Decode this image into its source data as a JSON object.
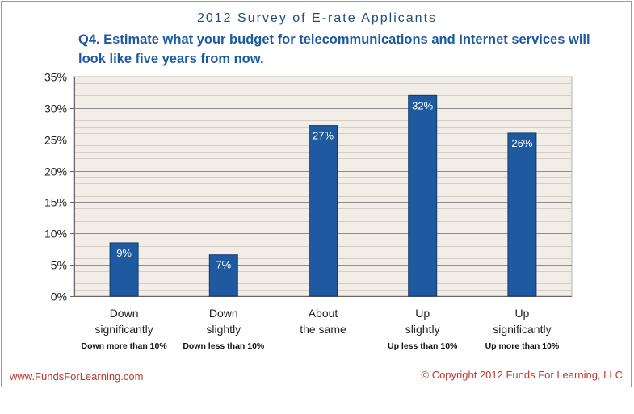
{
  "header": {
    "title": "2012 Survey of E-rate Applicants",
    "question": "Q4. Estimate what your budget for telecommunications and Internet services will look like five years from now."
  },
  "chart_data": {
    "type": "bar",
    "categories": [
      {
        "label_lines": [
          "Down",
          "significantly"
        ],
        "sub": "Down more than 10%"
      },
      {
        "label_lines": [
          "Down",
          "slightly"
        ],
        "sub": "Down less than 10%"
      },
      {
        "label_lines": [
          "About",
          "the same"
        ],
        "sub": ""
      },
      {
        "label_lines": [
          "Up",
          "slightly"
        ],
        "sub": "Up less than 10%"
      },
      {
        "label_lines": [
          "Up",
          "significantly"
        ],
        "sub": "Up more than 10%"
      }
    ],
    "values": [
      8.5,
      6.6,
      27.2,
      32,
      26
    ],
    "data_labels": [
      "9%",
      "7%",
      "27%",
      "32%",
      "26%"
    ],
    "ylim": [
      0,
      35
    ],
    "yticks": [
      0,
      5,
      10,
      15,
      20,
      25,
      30,
      35
    ],
    "ytick_labels": [
      "0%",
      "5%",
      "10%",
      "15%",
      "20%",
      "25%",
      "30%",
      "35%"
    ],
    "grid": true,
    "bar_color": "#1f5aa0",
    "plot_bg": "#f2ede6"
  },
  "footer": {
    "left": "www.FundsForLearning.com",
    "right": "© Copyright 2012  Funds For Learning, LLC"
  }
}
